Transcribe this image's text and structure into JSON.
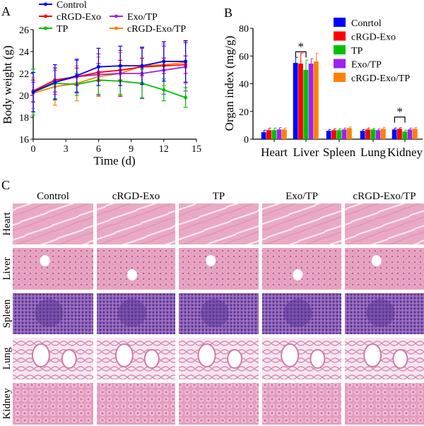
{
  "panel_labels": {
    "a": "A",
    "b": "B",
    "c": "C"
  },
  "colors": {
    "Control": "#0000ff",
    "cRGD-Exo": "#ff0000",
    "TP": "#00c000",
    "Exo/TP": "#a020f0",
    "cRGD-Exo/TP": "#ff8000"
  },
  "chart_data": [
    {
      "type": "line",
      "title": "",
      "xlabel": "Time (d)",
      "ylabel": "Body weight (g)",
      "xlim": [
        0,
        15
      ],
      "ylim": [
        16,
        26
      ],
      "xticks": [
        "0",
        "3",
        "6",
        "9",
        "12",
        "15"
      ],
      "yticks": [
        "16",
        "18",
        "20",
        "22",
        "24",
        "26"
      ],
      "legend": [
        "Control",
        "cRGD-Exo",
        "Exo/TP",
        "TP",
        "cRGD-Exo/TP"
      ],
      "legend_placement": "top",
      "x": [
        0,
        2,
        4,
        6,
        8,
        10,
        12,
        14
      ],
      "series": [
        {
          "name": "Control",
          "values": [
            20.3,
            21.2,
            21.8,
            22.6,
            22.7,
            22.7,
            23.1,
            23.1
          ],
          "error": [
            1.8,
            1.6,
            1.5,
            1.7,
            1.8,
            1.7,
            1.8,
            1.9
          ]
        },
        {
          "name": "cRGD-Exo",
          "values": [
            20.4,
            21.4,
            21.7,
            22.1,
            22.3,
            22.6,
            22.7,
            22.8
          ],
          "error": [
            1.0,
            1.1,
            0.8,
            0.8,
            0.9,
            0.8,
            0.7,
            0.8
          ]
        },
        {
          "name": "TP",
          "values": [
            20.3,
            21.1,
            21.0,
            21.4,
            21.3,
            21.1,
            20.5,
            19.8
          ],
          "error": [
            2.1,
            1.4,
            1.0,
            1.3,
            1.3,
            1.3,
            1.0,
            0.9
          ]
        },
        {
          "name": "Exo/TP",
          "values": [
            20.3,
            21.2,
            21.7,
            21.9,
            22.0,
            22.0,
            22.3,
            22.6
          ],
          "error": [
            0.9,
            1.1,
            1.5,
            1.9,
            2.1,
            2.3,
            2.2,
            2.2
          ]
        },
        {
          "name": "cRGD-Exo/TP",
          "values": [
            20.2,
            20.8,
            21.1,
            21.7,
            22.0,
            22.7,
            22.8,
            23.0
          ],
          "error": [
            1.4,
            1.7,
            1.6,
            1.8,
            1.9,
            1.6,
            1.9,
            1.9
          ]
        }
      ]
    },
    {
      "type": "bar",
      "title": "",
      "xlabel": "",
      "ylabel": "Organ index (mg/g)",
      "ylim": [
        0,
        80
      ],
      "yticks": [
        "0",
        "20",
        "40",
        "60",
        "80"
      ],
      "categories": [
        "Heart",
        "Liver",
        "Spleen",
        "Lung",
        "Kidney"
      ],
      "legend": [
        "Conrtol",
        "cRGD-Exo",
        "TP",
        "Exo/TP",
        "cRGD-Exo/TP"
      ],
      "legend_placement": "top-right",
      "series": [
        {
          "name": "Conrtol",
          "values": [
            5,
            55,
            6,
            6,
            7
          ],
          "error": [
            1.5,
            4,
            1,
            1,
            1
          ]
        },
        {
          "name": "cRGD-Exo",
          "values": [
            6.5,
            54.5,
            6.5,
            7,
            7.5
          ],
          "error": [
            1.5,
            7.5,
            1,
            1,
            0.8
          ]
        },
        {
          "name": "TP",
          "values": [
            6.5,
            50,
            6.5,
            7,
            5.5
          ],
          "error": [
            1.5,
            7,
            1,
            0.8,
            1
          ]
        },
        {
          "name": "Exo/TP",
          "values": [
            7,
            54.5,
            7,
            6.5,
            7
          ],
          "error": [
            1.3,
            3.5,
            1,
            0.8,
            1
          ]
        },
        {
          "name": "cRGD-Exo/TP",
          "values": [
            7,
            56,
            8,
            7.5,
            7.5
          ],
          "error": [
            1,
            6,
            0.8,
            1,
            1
          ]
        }
      ],
      "annotations": [
        {
          "text": "*",
          "between": [
            "Conrtol",
            "TP"
          ],
          "category": "Liver"
        },
        {
          "text": "*",
          "between": [
            "Conrtol",
            "TP"
          ],
          "category": "Kidney"
        }
      ]
    }
  ],
  "histology": {
    "columns": [
      "Control",
      "cRGD-Exo",
      "TP",
      "Exo/TP",
      "cRGD-Exo/TP"
    ],
    "rows": [
      "Heart",
      "Liver",
      "Spleen",
      "Lung",
      "Kidney"
    ]
  }
}
